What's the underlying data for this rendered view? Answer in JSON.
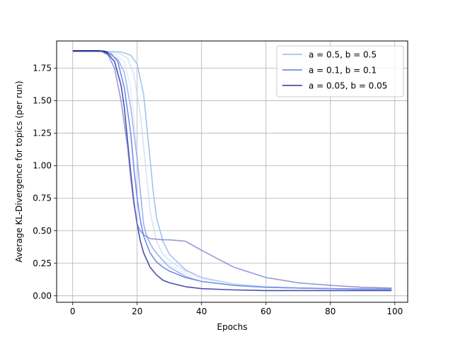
{
  "chart_data": {
    "type": "line",
    "title": "",
    "xlabel": "Epochs",
    "ylabel": "Average KL-Divergence for topics (per run)",
    "xlim": [
      -5,
      104
    ],
    "ylim": [
      -0.05,
      1.96
    ],
    "xticks": [
      0,
      20,
      40,
      60,
      80,
      100
    ],
    "xtick_labels": [
      "0",
      "20",
      "40",
      "60",
      "80",
      "100"
    ],
    "yticks": [
      0.0,
      0.25,
      0.5,
      0.75,
      1.0,
      1.25,
      1.5,
      1.75
    ],
    "ytick_labels": [
      "0.00",
      "0.25",
      "0.50",
      "0.75",
      "1.00",
      "1.25",
      "1.50",
      "1.75"
    ],
    "grid": true,
    "legend_position": "top-right",
    "series": [
      {
        "name": "a = 0.5, b = 0.5",
        "color": "#a4c2f4",
        "opacity": 1.0,
        "x": [
          0,
          10,
          15,
          18,
          20,
          22,
          24,
          25,
          26,
          28,
          30,
          35,
          40,
          50,
          60,
          70,
          80,
          90,
          99
        ],
        "y": [
          1.88,
          1.88,
          1.875,
          1.85,
          1.78,
          1.55,
          1.05,
          0.8,
          0.6,
          0.42,
          0.32,
          0.2,
          0.14,
          0.09,
          0.07,
          0.06,
          0.055,
          0.055,
          0.055
        ]
      },
      {
        "name": "",
        "color": "#bcd0f4",
        "opacity": 0.6,
        "x": [
          0,
          10,
          14,
          17,
          19,
          21,
          23,
          24,
          26,
          28,
          30,
          35,
          40,
          50,
          60,
          70,
          80,
          90,
          99
        ],
        "y": [
          1.88,
          1.88,
          1.87,
          1.83,
          1.7,
          1.4,
          0.9,
          0.65,
          0.42,
          0.32,
          0.27,
          0.19,
          0.14,
          0.09,
          0.07,
          0.06,
          0.055,
          0.05,
          0.05
        ]
      },
      {
        "name": "",
        "color": "#d6e2f7",
        "opacity": 0.6,
        "x": [
          0,
          10,
          13,
          16,
          18,
          20,
          21,
          22,
          24,
          26,
          30,
          35,
          40,
          50,
          60,
          70,
          80,
          90,
          99
        ],
        "y": [
          1.88,
          1.88,
          1.86,
          1.8,
          1.6,
          1.1,
          0.8,
          0.55,
          0.4,
          0.32,
          0.24,
          0.17,
          0.13,
          0.09,
          0.07,
          0.06,
          0.055,
          0.05,
          0.05
        ]
      },
      {
        "name": "a = 0.1, b = 0.1",
        "color": "#6d8ee8",
        "opacity": 1.0,
        "x": [
          0,
          10,
          12,
          14,
          16,
          18,
          19,
          20,
          21,
          22,
          24,
          26,
          28,
          30,
          35,
          40,
          50,
          60,
          70,
          80,
          90,
          99
        ],
        "y": [
          1.88,
          1.88,
          1.86,
          1.8,
          1.6,
          1.25,
          0.98,
          0.75,
          0.58,
          0.46,
          0.33,
          0.26,
          0.22,
          0.19,
          0.14,
          0.11,
          0.08,
          0.065,
          0.06,
          0.055,
          0.05,
          0.05
        ]
      },
      {
        "name": "",
        "color": "#7f9ae6",
        "opacity": 0.7,
        "x": [
          0,
          10,
          14,
          16,
          18,
          20,
          21,
          22,
          23,
          25,
          28,
          30,
          35,
          40,
          50,
          60,
          70,
          80,
          90,
          99
        ],
        "y": [
          1.88,
          1.88,
          1.82,
          1.72,
          1.45,
          1.05,
          0.8,
          0.55,
          0.45,
          0.36,
          0.27,
          0.22,
          0.15,
          0.11,
          0.08,
          0.065,
          0.06,
          0.055,
          0.05,
          0.05
        ]
      },
      {
        "name": "a = 0.05, b = 0.05",
        "color": "#4a4fb0",
        "opacity": 1.0,
        "x": [
          0,
          9,
          11,
          13,
          15,
          16,
          17,
          18,
          19,
          20,
          21,
          22,
          24,
          26,
          28,
          30,
          35,
          40,
          50,
          60,
          70,
          80,
          90,
          99
        ],
        "y": [
          1.88,
          1.88,
          1.86,
          1.8,
          1.62,
          1.45,
          1.2,
          0.95,
          0.72,
          0.55,
          0.42,
          0.33,
          0.22,
          0.16,
          0.12,
          0.1,
          0.07,
          0.055,
          0.045,
          0.04,
          0.04,
          0.04,
          0.04,
          0.04
        ]
      },
      {
        "name": "",
        "color": "#6a6fc4",
        "opacity": 0.7,
        "x": [
          0,
          9,
          11,
          13,
          15,
          17,
          18,
          19,
          20,
          21,
          22,
          24,
          26,
          28,
          30,
          35,
          40,
          50,
          60,
          70,
          80,
          90,
          99
        ],
        "y": [
          1.88,
          1.88,
          1.85,
          1.75,
          1.5,
          1.15,
          0.9,
          0.7,
          0.55,
          0.5,
          0.47,
          0.44,
          0.435,
          0.43,
          0.43,
          0.42,
          0.35,
          0.22,
          0.14,
          0.1,
          0.08,
          0.065,
          0.06
        ]
      },
      {
        "name": "",
        "color": "#1a2a8c",
        "opacity": 1.0,
        "x": [
          0,
          8,
          10,
          11
        ],
        "y": [
          1.885,
          1.885,
          1.88,
          1.87
        ]
      }
    ]
  }
}
